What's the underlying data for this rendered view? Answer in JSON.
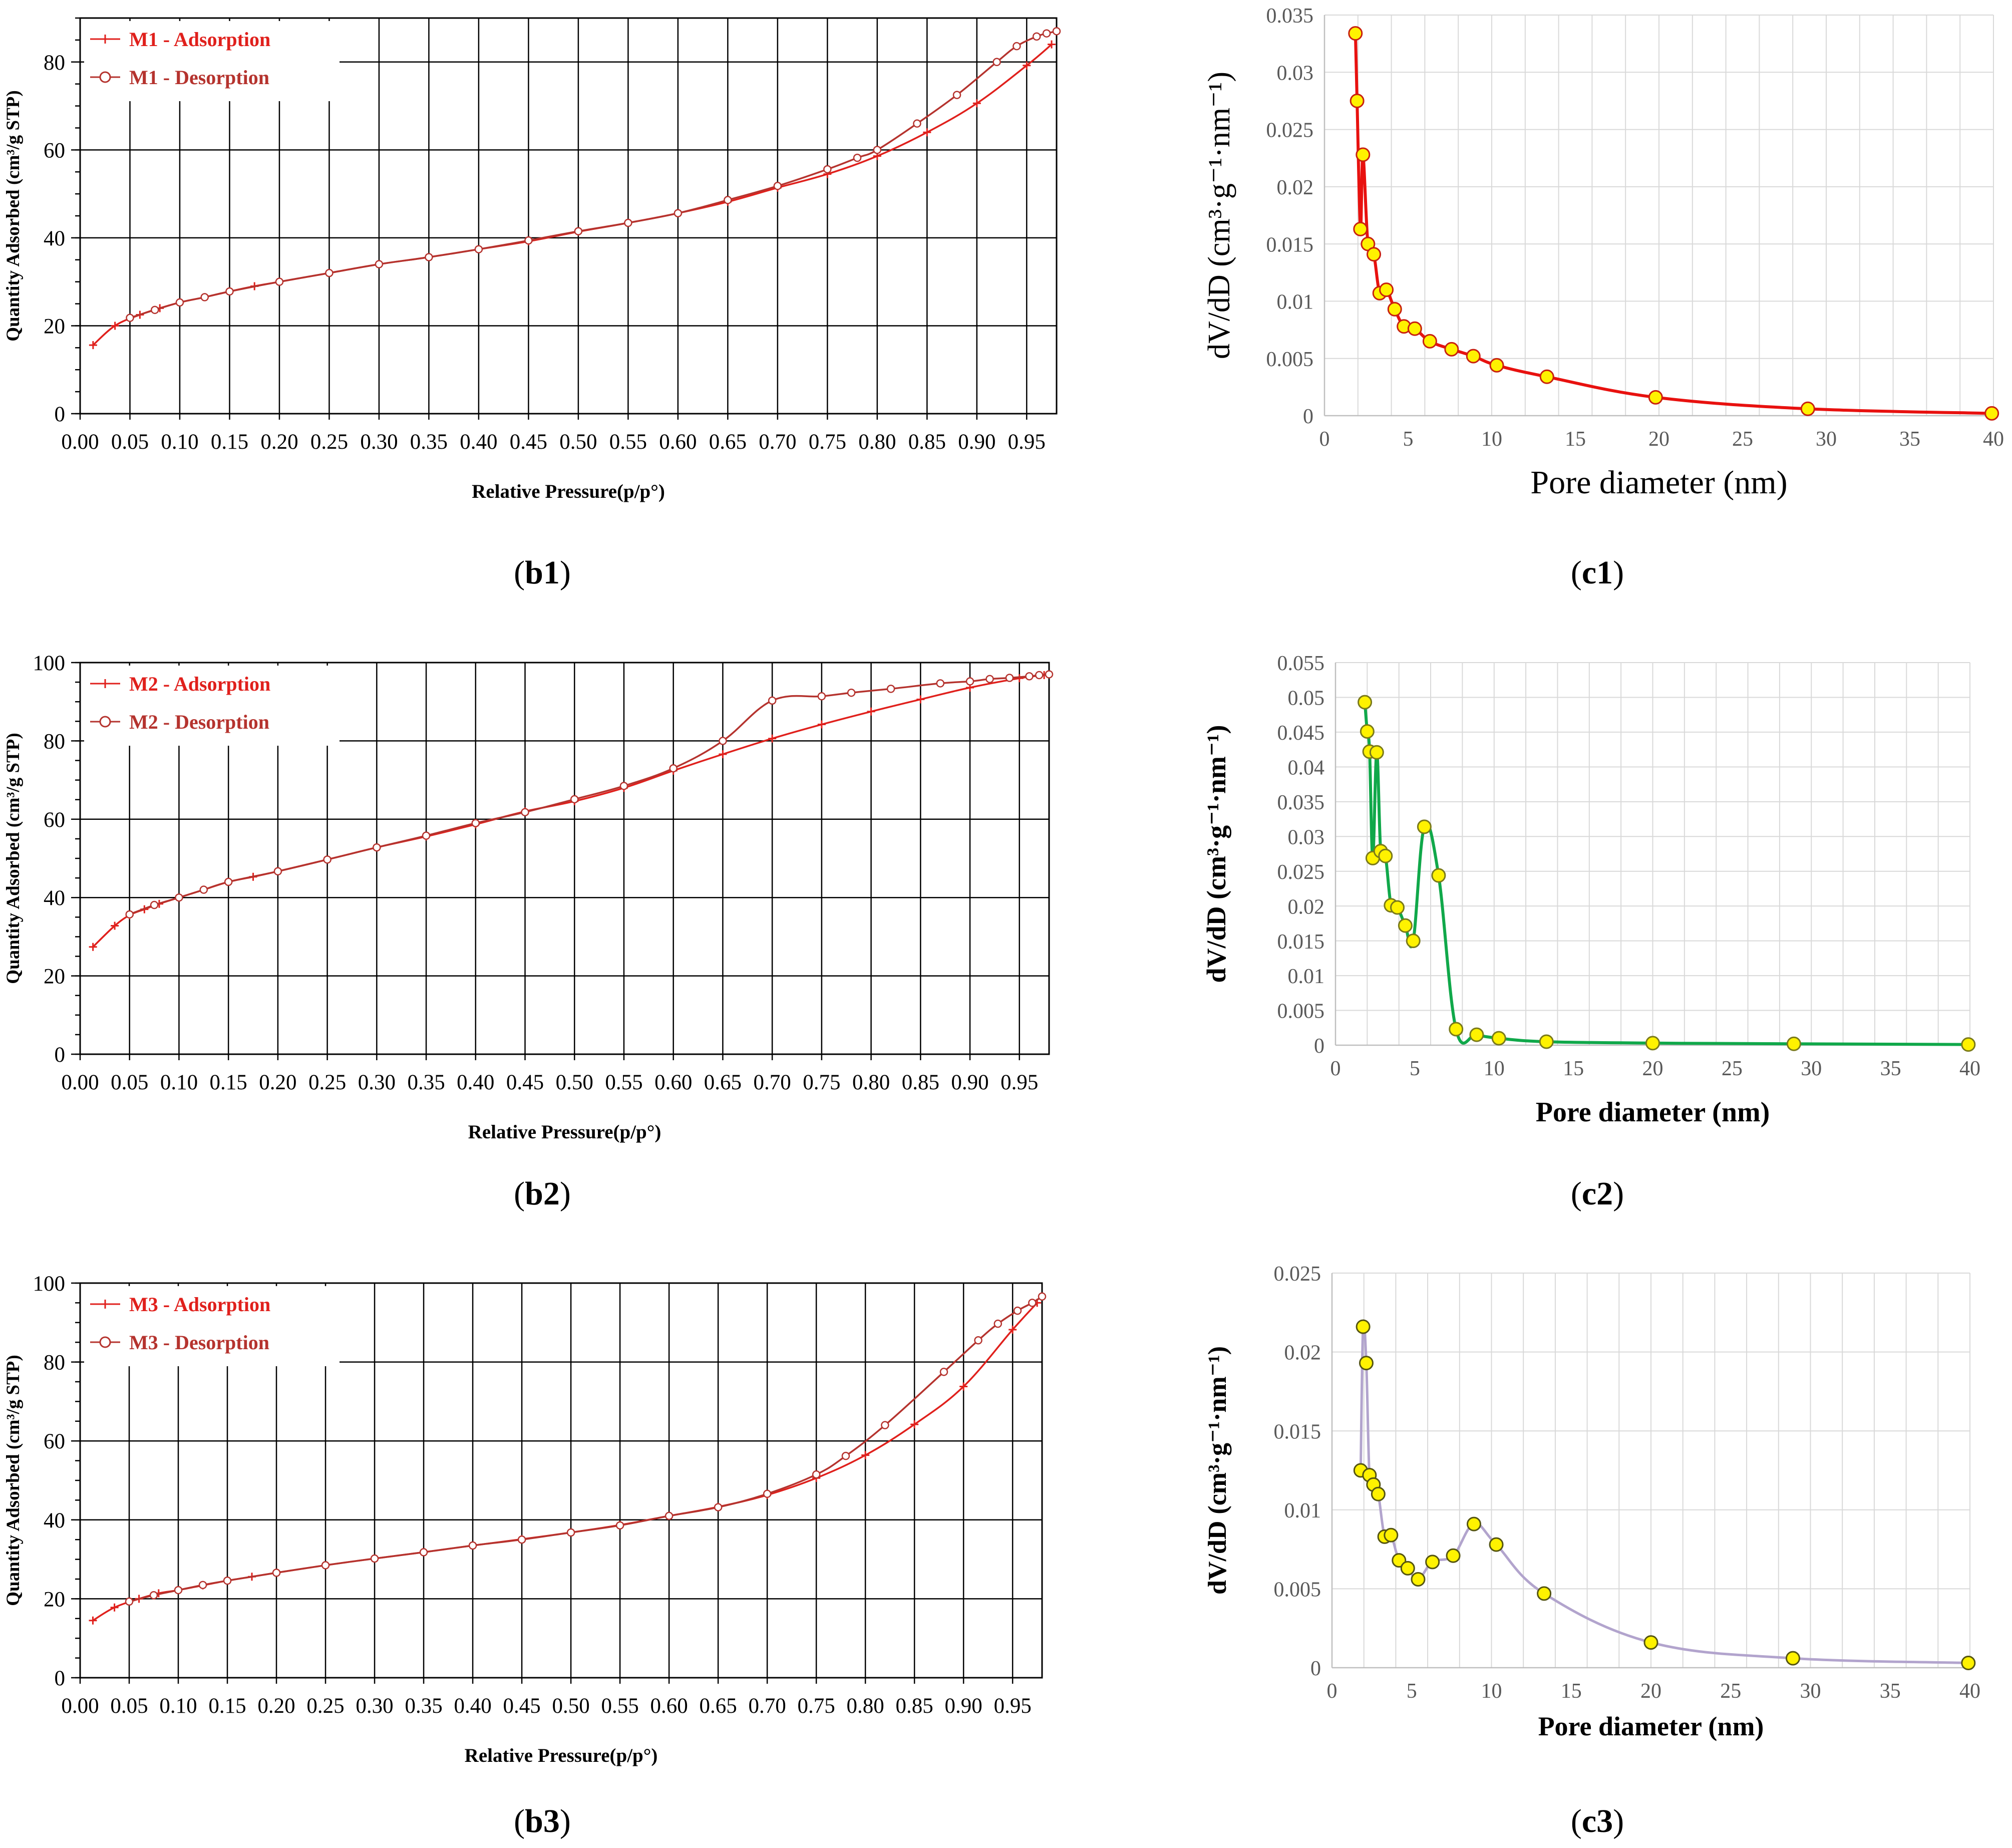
{
  "figure": {
    "panel_labels": [
      {
        "open": "(",
        "id": "b1",
        "close": ")"
      },
      {
        "open": "(",
        "id": "c1",
        "close": ")"
      },
      {
        "open": "(",
        "id": "b2",
        "close": ")"
      },
      {
        "open": "(",
        "id": "c2",
        "close": ")"
      },
      {
        "open": "(",
        "id": "b3",
        "close": ")"
      },
      {
        "open": "(",
        "id": "c3",
        "close": ")"
      }
    ]
  },
  "chart_data": [
    {
      "id": "b1",
      "type": "line",
      "title": "",
      "xlabel": "Relative Pressure(p/p°)",
      "ylabel": "Quantity Adsorbed (cm³/g STP)",
      "xlim": [
        0,
        0.98
      ],
      "ylim": [
        0,
        90
      ],
      "xticks": [
        "0.00",
        "0.05",
        "0.10",
        "0.15",
        "0.20",
        "0.25",
        "0.30",
        "0.35",
        "0.40",
        "0.45",
        "0.50",
        "0.55",
        "0.60",
        "0.65",
        "0.70",
        "0.75",
        "0.80",
        "0.85",
        "0.90",
        "0.95"
      ],
      "yticks": [
        "0",
        "20",
        "40",
        "60",
        "80"
      ],
      "colors": {
        "adsorption": "#e0201c",
        "desorption": "#b5332e"
      },
      "series": [
        {
          "name": "M1 - Adsorption",
          "marker": "plus",
          "x": [
            0.013,
            0.035,
            0.06,
            0.08,
            0.1,
            0.125,
            0.15,
            0.175,
            0.2,
            0.25,
            0.3,
            0.35,
            0.4,
            0.45,
            0.5,
            0.55,
            0.6,
            0.65,
            0.7,
            0.75,
            0.8,
            0.85,
            0.9,
            0.95,
            0.975
          ],
          "y": [
            15.6,
            20,
            22.5,
            24,
            25.3,
            26.5,
            27.8,
            29,
            30,
            32,
            34,
            35.6,
            37.4,
            39.2,
            41.4,
            43.4,
            45.6,
            48.2,
            51.4,
            54.5,
            58.6,
            64,
            70.6,
            79.2,
            84
          ]
        },
        {
          "name": "M1 - Desorption",
          "marker": "circle",
          "x": [
            0.98,
            0.97,
            0.96,
            0.94,
            0.92,
            0.88,
            0.84,
            0.8,
            0.78,
            0.75,
            0.7,
            0.65,
            0.6,
            0.55,
            0.5,
            0.45,
            0.4,
            0.35,
            0.3,
            0.25,
            0.2,
            0.15,
            0.125,
            0.1,
            0.075,
            0.05
          ],
          "y": [
            87,
            86.5,
            85.8,
            83.6,
            80,
            72.5,
            66,
            60,
            58.2,
            55.6,
            51.8,
            48.6,
            45.6,
            43.4,
            41.5,
            39.4,
            37.4,
            35.6,
            34,
            32,
            30,
            27.8,
            26.5,
            25.3,
            23.6,
            21.8
          ]
        }
      ]
    },
    {
      "id": "c1",
      "type": "line",
      "title": "",
      "xlabel": "Pore diameter (nm)",
      "ylabel": "dV/dD (cm³·g⁻¹·nm⁻¹)",
      "xlim": [
        0,
        40
      ],
      "ylim": [
        0,
        0.035
      ],
      "xticks": [
        "0",
        "5",
        "10",
        "15",
        "20",
        "25",
        "30",
        "35",
        "40"
      ],
      "yticks": [
        "0",
        "0.005",
        "0.01",
        "0.015",
        "0.02",
        "0.025",
        "0.03",
        "0.035"
      ],
      "colors": {
        "line": "#e8110f",
        "marker_fill": "#fff200",
        "marker_edge": "#c8210f"
      },
      "series": [
        {
          "name": "c1",
          "x": [
            1.85,
            1.95,
            2.15,
            2.3,
            2.6,
            2.95,
            3.3,
            3.7,
            4.2,
            4.75,
            5.4,
            6.3,
            7.6,
            8.9,
            10.3,
            13.3,
            19.8,
            28.9,
            39.9
          ],
          "y": [
            0.0334,
            0.0275,
            0.0163,
            0.0228,
            0.015,
            0.0141,
            0.0107,
            0.011,
            0.0093,
            0.0078,
            0.0076,
            0.0065,
            0.0058,
            0.0052,
            0.0044,
            0.0034,
            0.0016,
            0.0006,
            0.0002
          ]
        }
      ]
    },
    {
      "id": "b2",
      "type": "line",
      "title": "",
      "xlabel": "Relative Pressure(p/p°)",
      "ylabel": "Quantity Adsorbed (cm³/g STP)",
      "xlim": [
        0,
        0.98
      ],
      "ylim": [
        0,
        100
      ],
      "xticks": [
        "0.00",
        "0.05",
        "0.10",
        "0.15",
        "0.20",
        "0.25",
        "0.30",
        "0.35",
        "0.40",
        "0.45",
        "0.50",
        "0.55",
        "0.60",
        "0.65",
        "0.70",
        "0.75",
        "0.80",
        "0.85",
        "0.90",
        "0.95"
      ],
      "yticks": [
        "0",
        "20",
        "40",
        "60",
        "80",
        "100"
      ],
      "colors": {
        "adsorption": "#e0201c",
        "desorption": "#b5332e"
      },
      "series": [
        {
          "name": "M2 - Adsorption",
          "marker": "plus",
          "x": [
            0.013,
            0.035,
            0.05,
            0.065,
            0.08,
            0.1,
            0.125,
            0.15,
            0.175,
            0.2,
            0.25,
            0.3,
            0.35,
            0.4,
            0.45,
            0.5,
            0.55,
            0.6,
            0.65,
            0.7,
            0.75,
            0.8,
            0.85,
            0.9,
            0.95,
            0.975
          ],
          "y": [
            27.4,
            32.8,
            35.5,
            37,
            38.4,
            40,
            42,
            44,
            45.3,
            46.7,
            49.7,
            52.8,
            55.6,
            58.7,
            62,
            64.6,
            68,
            72.4,
            76.6,
            80.6,
            84.2,
            87.5,
            90.6,
            93.6,
            96,
            96.8
          ]
        },
        {
          "name": "M2 - Desorption",
          "marker": "circle",
          "x": [
            0.98,
            0.97,
            0.96,
            0.94,
            0.92,
            0.9,
            0.87,
            0.82,
            0.78,
            0.75,
            0.7,
            0.65,
            0.6,
            0.55,
            0.5,
            0.45,
            0.4,
            0.35,
            0.3,
            0.25,
            0.2,
            0.15,
            0.125,
            0.1,
            0.075,
            0.05
          ],
          "y": [
            97,
            96.8,
            96.5,
            96.1,
            95.8,
            95.2,
            94.7,
            93.3,
            92.3,
            91.4,
            90.3,
            80,
            73,
            68.5,
            65.1,
            61.8,
            59,
            55.8,
            52.8,
            49.7,
            46.7,
            44,
            42,
            40,
            38.1,
            35.7
          ]
        }
      ]
    },
    {
      "id": "c2",
      "type": "line",
      "title": "",
      "xlabel": "Pore diameter (nm)",
      "ylabel": "dV/dD (cm³·g⁻¹·nm⁻¹)",
      "xlim": [
        0,
        40
      ],
      "ylim": [
        0,
        0.055
      ],
      "xticks": [
        "0",
        "5",
        "10",
        "15",
        "20",
        "25",
        "30",
        "35",
        "40"
      ],
      "yticks": [
        "0",
        "0.005",
        "0.01",
        "0.015",
        "0.02",
        "0.025",
        "0.03",
        "0.035",
        "0.04",
        "0.045",
        "0.05",
        "0.055"
      ],
      "colors": {
        "line": "#10a84a",
        "marker_fill": "#fff200",
        "marker_edge": "#7a7a1a"
      },
      "series": [
        {
          "name": "c2",
          "x": [
            1.85,
            2,
            2.15,
            2.35,
            2.6,
            2.85,
            3.15,
            3.5,
            3.9,
            4.4,
            4.9,
            5.6,
            6.5,
            7.6,
            8.9,
            10.3,
            13.3,
            20,
            28.9,
            39.9
          ],
          "y": [
            0.0493,
            0.0451,
            0.0422,
            0.0269,
            0.0421,
            0.0279,
            0.0272,
            0.0201,
            0.0198,
            0.0172,
            0.015,
            0.0314,
            0.0244,
            0.0023,
            0.0015,
            0.001,
            0.0005,
            0.0003,
            0.0002,
            0.0001
          ]
        }
      ]
    },
    {
      "id": "b3",
      "type": "line",
      "title": "",
      "xlabel": "Relative Pressure(p/p°)",
      "ylabel": "Quantity Adsorbed (cm³/g STP)",
      "xlim": [
        0,
        0.98
      ],
      "ylim": [
        0,
        100
      ],
      "xticks": [
        "0.00",
        "0.05",
        "0.10",
        "0.15",
        "0.20",
        "0.25",
        "0.30",
        "0.35",
        "0.40",
        "0.45",
        "0.50",
        "0.55",
        "0.60",
        "0.65",
        "0.70",
        "0.75",
        "0.80",
        "0.85",
        "0.90",
        "0.95"
      ],
      "yticks": [
        "0",
        "20",
        "40",
        "60",
        "80",
        "100"
      ],
      "colors": {
        "adsorption": "#e0201c",
        "desorption": "#b5332e"
      },
      "series": [
        {
          "name": "M3 - Adsorption",
          "marker": "plus",
          "x": [
            0.013,
            0.035,
            0.06,
            0.08,
            0.1,
            0.125,
            0.15,
            0.175,
            0.2,
            0.25,
            0.3,
            0.35,
            0.4,
            0.45,
            0.5,
            0.55,
            0.6,
            0.65,
            0.7,
            0.75,
            0.8,
            0.85,
            0.9,
            0.95,
            0.975
          ],
          "y": [
            14.5,
            17.8,
            20,
            21.4,
            22.2,
            23.4,
            24.6,
            25.6,
            26.6,
            28.5,
            30.2,
            31.8,
            33.5,
            35.1,
            36.8,
            38.7,
            41,
            43.3,
            46.3,
            50.6,
            56.4,
            64.2,
            73.8,
            88.2,
            95
          ]
        },
        {
          "name": "M3 - Desorption",
          "marker": "circle",
          "x": [
            0.98,
            0.97,
            0.955,
            0.935,
            0.915,
            0.88,
            0.82,
            0.78,
            0.75,
            0.7,
            0.65,
            0.6,
            0.55,
            0.5,
            0.45,
            0.4,
            0.35,
            0.3,
            0.25,
            0.2,
            0.15,
            0.125,
            0.1,
            0.075,
            0.05
          ],
          "y": [
            96.6,
            95,
            93,
            89.7,
            85.5,
            77.5,
            64,
            56.2,
            51.5,
            46.6,
            43.2,
            41,
            38.6,
            36.8,
            35,
            33.5,
            31.8,
            30.2,
            28.5,
            26.6,
            24.6,
            23.5,
            22.2,
            20.9,
            19.3
          ]
        }
      ]
    },
    {
      "id": "c3",
      "type": "line",
      "title": "",
      "xlabel": "Pore diameter (nm)",
      "ylabel": "dV/dD (cm³·g⁻¹·nm⁻¹)",
      "xlim": [
        0,
        40
      ],
      "ylim": [
        0,
        0.025
      ],
      "xticks": [
        "0",
        "5",
        "10",
        "15",
        "20",
        "25",
        "30",
        "35",
        "40"
      ],
      "yticks": [
        "0",
        "0.005",
        "0.01",
        "0.015",
        "0.02",
        "0.025"
      ],
      "colors": {
        "line": "#b2a4cd",
        "marker_fill": "#fff200",
        "marker_edge": "#555511"
      },
      "series": [
        {
          "name": "c3",
          "x": [
            1.8,
            1.95,
            2.15,
            2.35,
            2.6,
            2.9,
            3.3,
            3.7,
            4.2,
            4.75,
            5.4,
            6.3,
            7.6,
            8.9,
            10.3,
            13.3,
            20,
            28.9,
            39.9
          ],
          "y": [
            0.0125,
            0.0216,
            0.0193,
            0.0122,
            0.0116,
            0.011,
            0.0083,
            0.0084,
            0.0068,
            0.0063,
            0.0056,
            0.0067,
            0.0071,
            0.0091,
            0.0078,
            0.0047,
            0.0016,
            0.0006,
            0.0003
          ]
        }
      ]
    }
  ]
}
